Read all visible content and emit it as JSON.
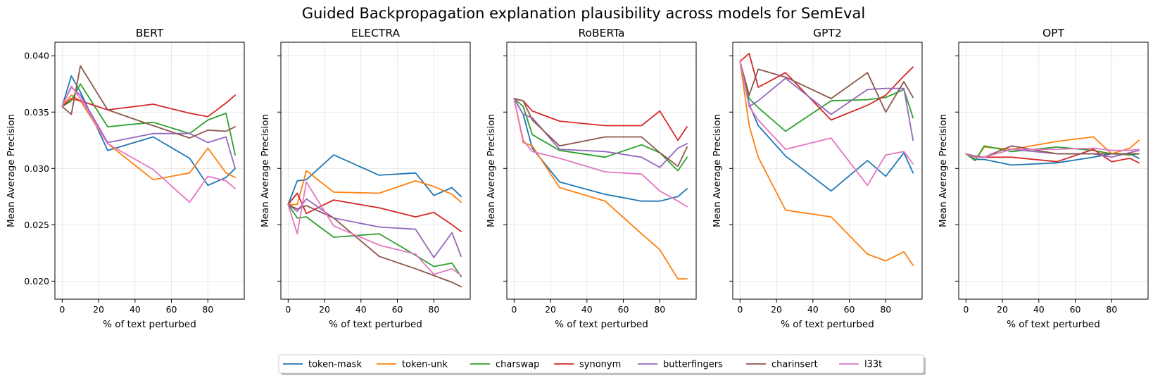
{
  "chart_data": {
    "type": "line",
    "title": "Guided Backpropagation explanation plausibility across models for SemEval",
    "xlabel": "% of text perturbed",
    "ylabel": "Mean Average Precision",
    "xlim": [
      -4,
      100
    ],
    "ylim": [
      0.0184,
      0.0412
    ],
    "xticks": [
      0,
      20,
      40,
      60,
      80
    ],
    "yticks": [
      0.02,
      0.025,
      0.03,
      0.035,
      0.04
    ],
    "ytick_labels": [
      "0.020",
      "0.025",
      "0.030",
      "0.035",
      "0.040"
    ],
    "grid": true,
    "legend_position": "bottom-center",
    "series_meta": [
      {
        "name": "token-mask",
        "color": "#1f77b4"
      },
      {
        "name": "token-unk",
        "color": "#ff7f0e"
      },
      {
        "name": "charswap",
        "color": "#2ca02c"
      },
      {
        "name": "synonym",
        "color": "#d62728"
      },
      {
        "name": "butterfingers",
        "color": "#9467bd"
      },
      {
        "name": "charinsert",
        "color": "#8c564b"
      },
      {
        "name": "l33t",
        "color": "#e377c2"
      }
    ],
    "x": [
      0,
      5,
      10,
      25,
      50,
      70,
      80,
      90,
      95
    ],
    "panels": [
      {
        "title": "BERT",
        "series": [
          {
            "name": "token-mask",
            "values": [
              0.0355,
              0.0382,
              0.0368,
              0.0316,
              0.0328,
              0.0309,
              0.0285,
              0.0292,
              0.03
            ]
          },
          {
            "name": "token-unk",
            "values": [
              0.0355,
              0.0365,
              0.036,
              0.0322,
              0.029,
              0.0296,
              0.0318,
              0.0296,
              0.0292
            ]
          },
          {
            "name": "charswap",
            "values": [
              0.0355,
              0.036,
              0.0375,
              0.0337,
              0.0341,
              0.0331,
              0.0343,
              0.0349,
              0.0312
            ]
          },
          {
            "name": "synonym",
            "values": [
              0.0355,
              0.0362,
              0.036,
              0.0352,
              0.0357,
              0.0349,
              0.0346,
              0.0358,
              0.0365
            ]
          },
          {
            "name": "butterfingers",
            "values": [
              0.0355,
              0.0372,
              0.0365,
              0.0323,
              0.0331,
              0.0331,
              0.0323,
              0.0328,
              0.03
            ]
          },
          {
            "name": "charinsert",
            "values": [
              0.0355,
              0.0348,
              0.0391,
              0.0352,
              0.0338,
              0.0327,
              0.0334,
              0.0333,
              0.0337
            ]
          },
          {
            "name": "l33t",
            "values": [
              0.0355,
              0.0373,
              0.0362,
              0.0322,
              0.0299,
              0.027,
              0.0293,
              0.0289,
              0.0282
            ]
          }
        ]
      },
      {
        "title": "ELECTRA",
        "series": [
          {
            "name": "token-mask",
            "values": [
              0.0268,
              0.0289,
              0.029,
              0.0312,
              0.0294,
              0.0296,
              0.0276,
              0.0283,
              0.0275
            ]
          },
          {
            "name": "token-unk",
            "values": [
              0.0268,
              0.0268,
              0.0298,
              0.0279,
              0.0278,
              0.0289,
              0.0284,
              0.0277,
              0.027
            ]
          },
          {
            "name": "charswap",
            "values": [
              0.0268,
              0.0256,
              0.0257,
              0.0239,
              0.0242,
              0.0223,
              0.0213,
              0.0216,
              0.0204
            ]
          },
          {
            "name": "synonym",
            "values": [
              0.0268,
              0.0278,
              0.026,
              0.0272,
              0.0265,
              0.0257,
              0.0261,
              0.025,
              0.0244
            ]
          },
          {
            "name": "butterfingers",
            "values": [
              0.0268,
              0.0262,
              0.0273,
              0.0256,
              0.0248,
              0.0246,
              0.0221,
              0.0243,
              0.0222
            ]
          },
          {
            "name": "charinsert",
            "values": [
              0.0268,
              0.0264,
              0.0267,
              0.0256,
              0.0222,
              0.0211,
              0.0205,
              0.0199,
              0.0195
            ]
          },
          {
            "name": "l33t",
            "values": [
              0.0268,
              0.0242,
              0.0288,
              0.0249,
              0.0232,
              0.0224,
              0.0206,
              0.0211,
              0.0205
            ]
          }
        ]
      },
      {
        "title": "RoBERTa",
        "series": [
          {
            "name": "token-mask",
            "values": [
              0.0362,
              0.0348,
              0.0318,
              0.0288,
              0.0277,
              0.0271,
              0.0271,
              0.0275,
              0.0282
            ]
          },
          {
            "name": "token-unk",
            "values": [
              0.0362,
              0.0323,
              0.032,
              0.0283,
              0.0271,
              0.0242,
              0.0228,
              0.0202,
              0.0202
            ]
          },
          {
            "name": "charswap",
            "values": [
              0.0362,
              0.0355,
              0.033,
              0.0316,
              0.031,
              0.0321,
              0.0314,
              0.0298,
              0.031
            ]
          },
          {
            "name": "synonym",
            "values": [
              0.0362,
              0.036,
              0.0351,
              0.0342,
              0.0338,
              0.0338,
              0.0351,
              0.0325,
              0.0337
            ]
          },
          {
            "name": "butterfingers",
            "values": [
              0.0362,
              0.0348,
              0.0345,
              0.0317,
              0.0315,
              0.031,
              0.0301,
              0.0318,
              0.0322
            ]
          },
          {
            "name": "charinsert",
            "values": [
              0.0362,
              0.036,
              0.0343,
              0.032,
              0.0328,
              0.0328,
              0.0314,
              0.0302,
              0.0319
            ]
          },
          {
            "name": "l33t",
            "values": [
              0.0362,
              0.0325,
              0.0315,
              0.0309,
              0.0297,
              0.0295,
              0.028,
              0.0271,
              0.0266
            ]
          }
        ]
      },
      {
        "title": "GPT2",
        "series": [
          {
            "name": "token-mask",
            "values": [
              0.0395,
              0.0357,
              0.0338,
              0.0311,
              0.028,
              0.0307,
              0.0293,
              0.0314,
              0.0296
            ]
          },
          {
            "name": "token-unk",
            "values": [
              0.0395,
              0.0338,
              0.031,
              0.0263,
              0.0257,
              0.0224,
              0.0218,
              0.0226,
              0.0214
            ]
          },
          {
            "name": "charswap",
            "values": [
              0.0395,
              0.0362,
              0.0354,
              0.0333,
              0.036,
              0.0361,
              0.0363,
              0.037,
              0.0345
            ]
          },
          {
            "name": "synonym",
            "values": [
              0.0395,
              0.0402,
              0.0372,
              0.0385,
              0.0343,
              0.0356,
              0.0365,
              0.0382,
              0.039
            ]
          },
          {
            "name": "butterfingers",
            "values": [
              0.0395,
              0.0355,
              0.036,
              0.038,
              0.0348,
              0.037,
              0.0371,
              0.0371,
              0.0325
            ]
          },
          {
            "name": "charinsert",
            "values": [
              0.0395,
              0.0365,
              0.0388,
              0.0381,
              0.0362,
              0.0385,
              0.035,
              0.0377,
              0.0363
            ]
          },
          {
            "name": "l33t",
            "values": [
              0.0395,
              0.0355,
              0.0343,
              0.0317,
              0.0327,
              0.0285,
              0.0312,
              0.0315,
              0.0304
            ]
          }
        ]
      },
      {
        "title": "OPT",
        "series": [
          {
            "name": "token-mask",
            "values": [
              0.0313,
              0.0308,
              0.0308,
              0.0303,
              0.0305,
              0.031,
              0.0313,
              0.0313,
              0.0309
            ]
          },
          {
            "name": "token-unk",
            "values": [
              0.0313,
              0.0307,
              0.0319,
              0.0317,
              0.0324,
              0.0328,
              0.0313,
              0.0318,
              0.0325
            ]
          },
          {
            "name": "charswap",
            "values": [
              0.0313,
              0.0307,
              0.032,
              0.0315,
              0.0319,
              0.0316,
              0.0313,
              0.0312,
              0.0313
            ]
          },
          {
            "name": "synonym",
            "values": [
              0.0313,
              0.031,
              0.031,
              0.031,
              0.0306,
              0.0317,
              0.0306,
              0.0309,
              0.0305
            ]
          },
          {
            "name": "butterfingers",
            "values": [
              0.0313,
              0.031,
              0.031,
              0.0317,
              0.0313,
              0.0313,
              0.031,
              0.0314,
              0.0316
            ]
          },
          {
            "name": "charinsert",
            "values": [
              0.0313,
              0.0311,
              0.031,
              0.032,
              0.0313,
              0.0313,
              0.0313,
              0.0313,
              0.0313
            ]
          },
          {
            "name": "l33t",
            "values": [
              0.0313,
              0.031,
              0.031,
              0.0317,
              0.0317,
              0.0318,
              0.0316,
              0.0316,
              0.0317
            ]
          }
        ]
      }
    ]
  }
}
